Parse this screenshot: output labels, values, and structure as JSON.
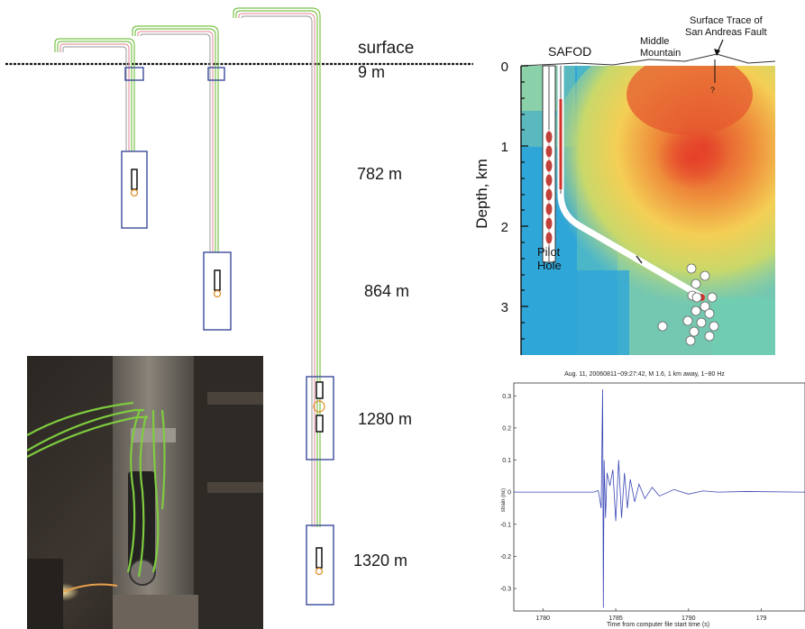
{
  "wells": {
    "surface_label": "surface",
    "depth_labels": [
      "9 m",
      "782 m",
      "864 m",
      "1280 m",
      "1320 m"
    ]
  },
  "map": {
    "safod_label": "SAFOD",
    "middle_mountain_line1": "Middle",
    "middle_mountain_line2": "Mountain",
    "fault_line1": "Surface Trace of",
    "fault_line2": "San Andreas Fault",
    "question_mark": "?",
    "pilot_hole_line1": "Pilot",
    "pilot_hole_line2": "Hole",
    "y_axis_label": "Depth, km",
    "y_ticks": [
      "0",
      "1",
      "2",
      "3"
    ]
  },
  "chart_data": {
    "type": "line",
    "title": "Aug. 11, 20060811~09:27:42, M 1.6, 1 km away, 1~80 Hz",
    "xlabel": "Time from computer file start time (s)",
    "ylabel": "strain (nε)",
    "xlim": [
      1778,
      1798
    ],
    "ylim": [
      -0.37,
      0.34
    ],
    "x_ticks": [
      "1780",
      "1785",
      "1790",
      "179"
    ],
    "y_ticks": [
      "0.3",
      "0.2",
      "0.1",
      "0",
      "-0.1",
      "-0.2",
      "-0.3"
    ],
    "series": [
      {
        "x": [
          1778,
          1783.5,
          1783.8,
          1784.0,
          1784.1,
          1784.15,
          1784.2,
          1784.3,
          1784.4,
          1784.6,
          1784.8,
          1785.0,
          1785.2,
          1785.4,
          1785.6,
          1785.8,
          1786.0,
          1786.3,
          1786.6,
          1787.0,
          1787.5,
          1788.0,
          1789.0,
          1790.0,
          1791.0,
          1792.0,
          1794.0,
          1798.0
        ],
        "y": [
          0.0,
          0.0,
          0.005,
          -0.05,
          0.32,
          -0.36,
          0.1,
          -0.08,
          0.06,
          0.02,
          0.07,
          -0.09,
          0.1,
          -0.08,
          0.06,
          -0.05,
          0.04,
          -0.03,
          0.025,
          -0.02,
          0.015,
          -0.012,
          0.008,
          -0.006,
          0.004,
          0.0,
          0.002,
          0.0
        ]
      }
    ]
  }
}
